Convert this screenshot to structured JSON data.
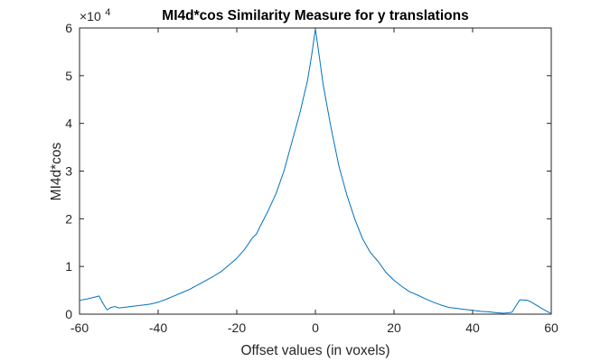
{
  "chart_data": {
    "type": "line",
    "title": "MI4d*cos Similarity Measure for y translations",
    "xlabel": "Offset values (in voxels)",
    "ylabel": "MI4d*cos",
    "y_exponent_base": "×10",
    "y_exponent": "4",
    "xlim": [
      -60,
      60
    ],
    "ylim": [
      0,
      60000
    ],
    "xticks": [
      -60,
      -40,
      -20,
      0,
      20,
      40,
      60
    ],
    "xtick_labels": [
      "-60",
      "-40",
      "-20",
      "0",
      "20",
      "40",
      "60"
    ],
    "yticks": [
      0,
      10000,
      20000,
      30000,
      40000,
      50000,
      60000
    ],
    "ytick_labels": [
      "0",
      "1",
      "2",
      "3",
      "4",
      "5",
      "6"
    ],
    "grid": false,
    "line_color": "#0072BD",
    "series": [
      {
        "x": [
          -60,
          -58,
          -56,
          -55,
          -54,
          -53,
          -52,
          -51,
          -50,
          -48,
          -46,
          -44,
          -42,
          -40,
          -38,
          -36,
          -34,
          -32,
          -30,
          -28,
          -26,
          -24,
          -22,
          -20,
          -18,
          -16,
          -15,
          -14,
          -12,
          -10,
          -8,
          -6,
          -4,
          -2,
          -1,
          0,
          1,
          2,
          4,
          6,
          8,
          10,
          12,
          14,
          16,
          18,
          20,
          22,
          24,
          26,
          28,
          30,
          32,
          34,
          36,
          38,
          40,
          42,
          44,
          46,
          48,
          50,
          52,
          54,
          55,
          56,
          58,
          60
        ],
        "values": [
          2900,
          3200,
          3600,
          3800,
          2200,
          900,
          1400,
          1600,
          1300,
          1500,
          1700,
          1900,
          2100,
          2500,
          3100,
          3800,
          4500,
          5200,
          6100,
          7000,
          7900,
          8900,
          10300,
          11700,
          13600,
          16000,
          16800,
          18500,
          21700,
          25300,
          30000,
          36000,
          42000,
          49000,
          54000,
          59800,
          54000,
          48000,
          39000,
          31000,
          25000,
          20000,
          15800,
          12900,
          11000,
          8700,
          7100,
          5800,
          4700,
          4000,
          3200,
          2500,
          1900,
          1400,
          1200,
          1000,
          800,
          600,
          500,
          300,
          200,
          400,
          3000,
          2900,
          2500,
          2000,
          1000,
          100
        ]
      }
    ]
  }
}
